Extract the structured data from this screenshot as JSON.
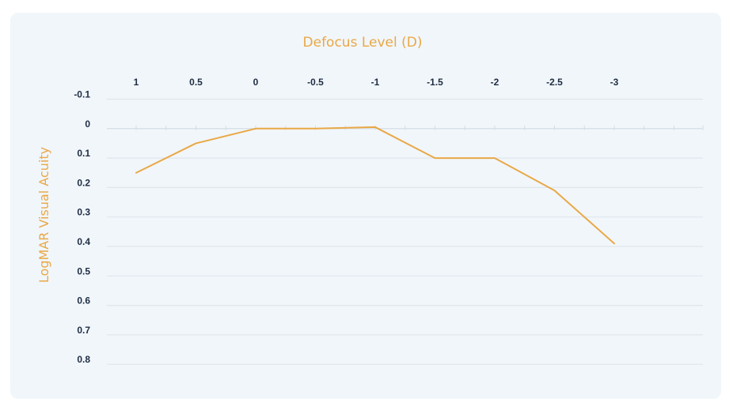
{
  "chart_data": {
    "type": "line",
    "title": "",
    "xlabel": "Defocus Level (D)",
    "ylabel": "LogMAR Visual Acuity",
    "x": [
      "1",
      "0.5",
      "0",
      "-0.5",
      "-1",
      "-1.5",
      "-2",
      "-2.5",
      "-3"
    ],
    "series": [
      {
        "values": [
          0.15,
          0.05,
          0.0,
          0.0,
          -0.005,
          0.1,
          0.1,
          0.21,
          0.39
        ]
      }
    ],
    "y_ticks": [
      "-0.1",
      "0",
      "0.1",
      "0.2",
      "0.3",
      "0.4",
      "0.5",
      "0.6",
      "0.7",
      "0.8"
    ],
    "ylim": [
      -0.1,
      0.8
    ],
    "y_inverted": true,
    "x_axis_position": "top",
    "grid": true,
    "color": "#e9a846"
  }
}
